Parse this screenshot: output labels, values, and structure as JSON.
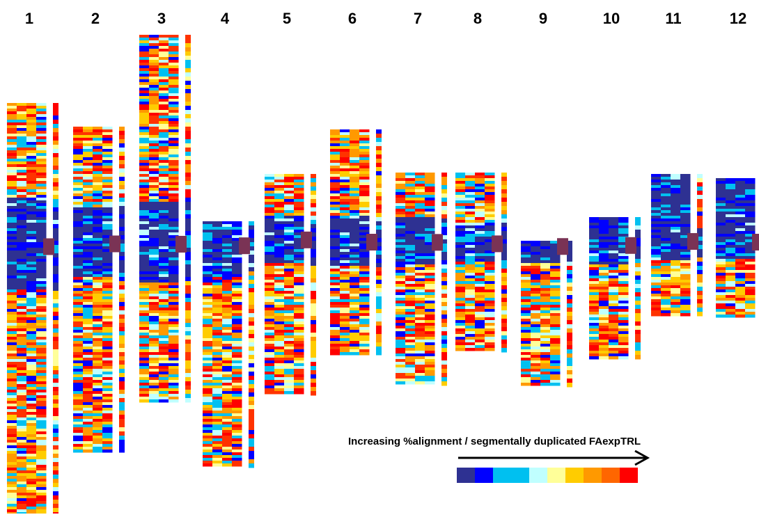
{
  "chromosomes": [
    {
      "label": "1",
      "heatmap_top": 148,
      "heatmap_bottom": 738,
      "centromere_frac": 0.35
    },
    {
      "label": "2",
      "heatmap_top": 182,
      "heatmap_bottom": 650,
      "centromere_frac": 0.36
    },
    {
      "label": "3",
      "heatmap_top": 50,
      "heatmap_bottom": 578,
      "centromere_frac": 0.57
    },
    {
      "label": "4",
      "heatmap_top": 318,
      "heatmap_bottom": 670,
      "centromere_frac": 0.1
    },
    {
      "label": "5",
      "heatmap_top": 250,
      "heatmap_bottom": 566,
      "centromere_frac": 0.3
    },
    {
      "label": "6",
      "heatmap_top": 186,
      "heatmap_bottom": 510,
      "centromere_frac": 0.5
    },
    {
      "label": "7",
      "heatmap_top": 248,
      "heatmap_bottom": 552,
      "centromere_frac": 0.33
    },
    {
      "label": "8",
      "heatmap_top": 248,
      "heatmap_bottom": 504,
      "centromere_frac": 0.4
    },
    {
      "label": "9",
      "heatmap_top": 346,
      "heatmap_bottom": 552,
      "centromere_frac": 0.04
    },
    {
      "label": "10",
      "heatmap_top": 312,
      "heatmap_bottom": 516,
      "centromere_frac": 0.2
    },
    {
      "label": "11",
      "heatmap_top": 250,
      "heatmap_bottom": 452,
      "centromere_frac": 0.48
    },
    {
      "label": "12",
      "heatmap_top": 256,
      "heatmap_bottom": 456,
      "centromere_frac": 0.46
    }
  ],
  "legend": {
    "title": "Increasing %alignment / segmentally duplicated FAexpTRL",
    "colors": [
      "#2e3192",
      "#0000ff",
      "#00c0f0",
      "#00c0f0",
      "#c0ffff",
      "#ffff99",
      "#ffcc00",
      "#ff9900",
      "#ff6600",
      "#ff0000"
    ]
  },
  "palette": [
    "#2e3192",
    "#0000ff",
    "#00c0f0",
    "#c0ffff",
    "#ffff99",
    "#ffcc00",
    "#ff9900",
    "#ff3300",
    "#ff0000"
  ],
  "centromere_color": "#7a3355"
}
